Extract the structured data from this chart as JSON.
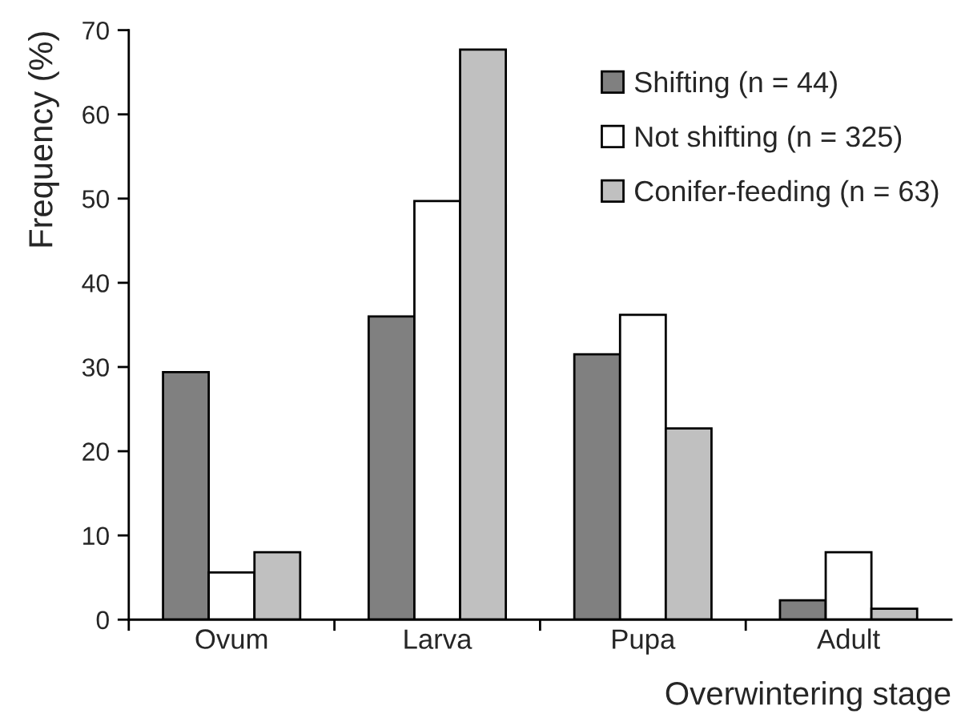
{
  "chart_data": {
    "type": "bar",
    "ylabel": "Frequency (%)",
    "xlabel": "Overwintering stage",
    "categories": [
      "Ovum",
      "Larva",
      "Pupa",
      "Adult"
    ],
    "series": [
      {
        "name": "Shifting (n = 44)",
        "color": "#808080",
        "values": [
          29.4,
          36.0,
          31.5,
          2.3
        ]
      },
      {
        "name": "Not shifting (n = 325)",
        "color": "#ffffff",
        "values": [
          5.6,
          49.7,
          36.2,
          8.0
        ]
      },
      {
        "name": "Conifer-feeding (n = 63)",
        "color": "#c0c0c0",
        "values": [
          8.0,
          67.7,
          22.7,
          1.3
        ]
      }
    ],
    "ylim": [
      0,
      70
    ],
    "yticks": [
      0,
      10,
      20,
      30,
      40,
      50,
      60,
      70
    ],
    "legend": "top right"
  }
}
